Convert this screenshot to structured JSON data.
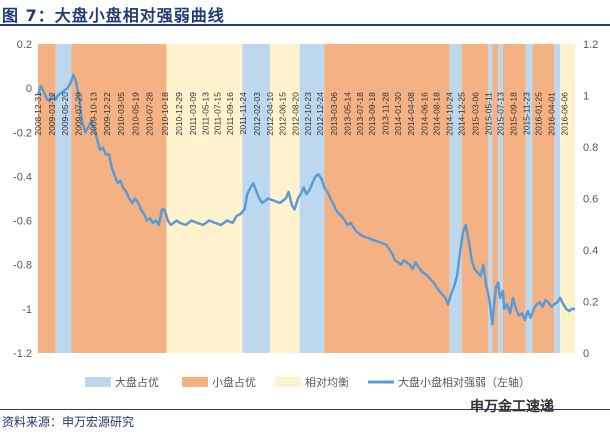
{
  "figure": {
    "title": "图 7：大盘小盘相对强弱曲线",
    "source": "资料来源：申万宏源研究",
    "watermark": "申万金工速递"
  },
  "colors": {
    "large": "#bdd7ee",
    "small": "#f4b183",
    "balance": "#fff2cc",
    "line": "#5b9bd5",
    "title": "#1f3c73",
    "text": "#595959"
  },
  "chart_data": {
    "type": "line",
    "title": "",
    "xlabel": "",
    "ylabel_left": "",
    "ylabel_right": "",
    "ylim_left": [
      -1.2,
      0.2
    ],
    "ylim_right": [
      0,
      1.2
    ],
    "yticks_left": [
      "0.2",
      "0",
      "-0.2",
      "-0.4",
      "-0.6",
      "-0.8",
      "-1",
      "-1.2"
    ],
    "yticks_right": [
      "1.2",
      "1",
      "0.8",
      "0.6",
      "0.4",
      "0.2",
      "0"
    ],
    "x_range": [
      "2008-12-31",
      "2016-07-31"
    ],
    "x_tick_labels": [
      "2008-12-31",
      "2009-03-12",
      "2009-05-20",
      "2009-07-29",
      "2009-10-13",
      "2009-12-22",
      "2010-03-05",
      "2010-05-19",
      "2010-07-28",
      "2010-10-18",
      "2010-12-29",
      "2011-03-09",
      "2011-05-13",
      "2011-07-15",
      "2011-09-16",
      "2011-11-24",
      "2012-02-03",
      "2012-04-10",
      "2012-06-15",
      "2012-08-20",
      "2012-10-23",
      "2012-12-24",
      "2013-03-06",
      "2013-05-14",
      "2013-07-18",
      "2013-09-18",
      "2013-11-28",
      "2014-01-30",
      "2014-04-08",
      "2014-06-16",
      "2014-08-18",
      "2014-10-24",
      "2014-12-25",
      "2015-03-06",
      "2015-05-11",
      "2015-07-13",
      "2015-09-18",
      "2015-11-23",
      "2016-01-25",
      "2016-04-01",
      "2016-06-06"
    ],
    "legend": [
      "大盘占优",
      "小盘占优",
      "相对均衡",
      "大盘小盘相对强弱（左轴）"
    ],
    "legend_position": "bottom",
    "grid": false,
    "regimes": [
      {
        "start": "2008-12-31",
        "end": "2009-04-01",
        "type": "small"
      },
      {
        "start": "2009-04-01",
        "end": "2009-06-20",
        "type": "large"
      },
      {
        "start": "2009-06-20",
        "end": "2010-10-25",
        "type": "small"
      },
      {
        "start": "2010-10-25",
        "end": "2011-11-20",
        "type": "balance"
      },
      {
        "start": "2011-11-20",
        "end": "2012-04-10",
        "type": "large"
      },
      {
        "start": "2012-04-10",
        "end": "2012-09-10",
        "type": "balance"
      },
      {
        "start": "2012-09-10",
        "end": "2013-01-15",
        "type": "large"
      },
      {
        "start": "2013-01-15",
        "end": "2014-10-24",
        "type": "small"
      },
      {
        "start": "2014-10-24",
        "end": "2014-12-25",
        "type": "large"
      },
      {
        "start": "2014-12-25",
        "end": "2015-05-11",
        "type": "small"
      },
      {
        "start": "2015-05-11",
        "end": "2015-06-01",
        "type": "large"
      },
      {
        "start": "2015-06-01",
        "end": "2015-07-01",
        "type": "small"
      },
      {
        "start": "2015-07-01",
        "end": "2015-07-25",
        "type": "large"
      },
      {
        "start": "2015-07-25",
        "end": "2015-11-20",
        "type": "small"
      },
      {
        "start": "2015-11-20",
        "end": "2015-12-25",
        "type": "large"
      },
      {
        "start": "2015-12-25",
        "end": "2016-04-15",
        "type": "small"
      },
      {
        "start": "2016-04-15",
        "end": "2016-05-15",
        "type": "large"
      },
      {
        "start": "2016-05-15",
        "end": "2016-07-31",
        "type": "balance"
      }
    ],
    "series": [
      {
        "name": "大盘小盘相对强弱（左轴）",
        "axis": "left",
        "points": [
          [
            "2008-12-31",
            -0.03
          ],
          [
            "2009-01-15",
            0.01
          ],
          [
            "2009-02-01",
            -0.02
          ],
          [
            "2009-02-15",
            -0.05
          ],
          [
            "2009-03-01",
            -0.06
          ],
          [
            "2009-03-15",
            -0.03
          ],
          [
            "2009-04-01",
            -0.05
          ],
          [
            "2009-04-15",
            -0.03
          ],
          [
            "2009-05-01",
            -0.02
          ],
          [
            "2009-05-15",
            -0.01
          ],
          [
            "2009-06-01",
            0.0
          ],
          [
            "2009-06-15",
            0.02
          ],
          [
            "2009-07-01",
            0.06
          ],
          [
            "2009-07-15",
            0.03
          ],
          [
            "2009-08-01",
            -0.05
          ],
          [
            "2009-08-15",
            -0.15
          ],
          [
            "2009-09-01",
            -0.2
          ],
          [
            "2009-09-15",
            -0.18
          ],
          [
            "2009-10-01",
            -0.15
          ],
          [
            "2009-10-15",
            -0.18
          ],
          [
            "2009-11-01",
            -0.23
          ],
          [
            "2009-11-15",
            -0.28
          ],
          [
            "2009-12-01",
            -0.27
          ],
          [
            "2009-12-15",
            -0.3
          ],
          [
            "2010-01-01",
            -0.3
          ],
          [
            "2010-01-15",
            -0.36
          ],
          [
            "2010-02-01",
            -0.4
          ],
          [
            "2010-02-15",
            -0.43
          ],
          [
            "2010-03-01",
            -0.42
          ],
          [
            "2010-03-15",
            -0.45
          ],
          [
            "2010-04-01",
            -0.47
          ],
          [
            "2010-04-15",
            -0.5
          ],
          [
            "2010-05-01",
            -0.52
          ],
          [
            "2010-05-15",
            -0.5
          ],
          [
            "2010-06-01",
            -0.52
          ],
          [
            "2010-06-15",
            -0.55
          ],
          [
            "2010-07-01",
            -0.57
          ],
          [
            "2010-07-15",
            -0.6
          ],
          [
            "2010-08-01",
            -0.59
          ],
          [
            "2010-08-15",
            -0.61
          ],
          [
            "2010-09-01",
            -0.6
          ],
          [
            "2010-09-15",
            -0.62
          ],
          [
            "2010-10-01",
            -0.55
          ],
          [
            "2010-10-15",
            -0.55
          ],
          [
            "2010-11-01",
            -0.6
          ],
          [
            "2010-11-15",
            -0.62
          ],
          [
            "2010-12-01",
            -0.61
          ],
          [
            "2010-12-15",
            -0.6
          ],
          [
            "2011-01-01",
            -0.61
          ],
          [
            "2011-02-01",
            -0.62
          ],
          [
            "2011-03-01",
            -0.6
          ],
          [
            "2011-04-01",
            -0.61
          ],
          [
            "2011-05-01",
            -0.62
          ],
          [
            "2011-06-01",
            -0.6
          ],
          [
            "2011-07-01",
            -0.61
          ],
          [
            "2011-08-01",
            -0.62
          ],
          [
            "2011-09-01",
            -0.6
          ],
          [
            "2011-10-01",
            -0.61
          ],
          [
            "2011-10-20",
            -0.58
          ],
          [
            "2011-11-10",
            -0.57
          ],
          [
            "2011-12-01",
            -0.55
          ],
          [
            "2011-12-15",
            -0.48
          ],
          [
            "2012-01-01",
            -0.45
          ],
          [
            "2012-01-15",
            -0.43
          ],
          [
            "2012-02-01",
            -0.47
          ],
          [
            "2012-02-15",
            -0.5
          ],
          [
            "2012-03-01",
            -0.52
          ],
          [
            "2012-04-01",
            -0.5
          ],
          [
            "2012-05-01",
            -0.51
          ],
          [
            "2012-06-01",
            -0.52
          ],
          [
            "2012-07-01",
            -0.5
          ],
          [
            "2012-07-15",
            -0.47
          ],
          [
            "2012-08-01",
            -0.53
          ],
          [
            "2012-08-15",
            -0.55
          ],
          [
            "2012-09-01",
            -0.5
          ],
          [
            "2012-09-15",
            -0.48
          ],
          [
            "2012-10-01",
            -0.45
          ],
          [
            "2012-10-15",
            -0.48
          ],
          [
            "2012-11-01",
            -0.46
          ],
          [
            "2012-11-15",
            -0.43
          ],
          [
            "2012-12-01",
            -0.4
          ],
          [
            "2012-12-15",
            -0.39
          ],
          [
            "2013-01-01",
            -0.41
          ],
          [
            "2013-01-15",
            -0.45
          ],
          [
            "2013-02-01",
            -0.47
          ],
          [
            "2013-02-15",
            -0.5
          ],
          [
            "2013-03-01",
            -0.52
          ],
          [
            "2013-03-15",
            -0.55
          ],
          [
            "2013-04-01",
            -0.57
          ],
          [
            "2013-04-15",
            -0.58
          ],
          [
            "2013-05-01",
            -0.6
          ],
          [
            "2013-05-15",
            -0.62
          ],
          [
            "2013-06-01",
            -0.61
          ],
          [
            "2013-06-15",
            -0.63
          ],
          [
            "2013-07-01",
            -0.65
          ],
          [
            "2013-07-15",
            -0.66
          ],
          [
            "2013-08-01",
            -0.67
          ],
          [
            "2013-09-01",
            -0.68
          ],
          [
            "2013-10-01",
            -0.69
          ],
          [
            "2013-11-01",
            -0.7
          ],
          [
            "2013-12-01",
            -0.71
          ],
          [
            "2014-01-01",
            -0.75
          ],
          [
            "2014-01-15",
            -0.78
          ],
          [
            "2014-02-01",
            -0.79
          ],
          [
            "2014-02-15",
            -0.8
          ],
          [
            "2014-03-01",
            -0.78
          ],
          [
            "2014-04-01",
            -0.8
          ],
          [
            "2014-04-15",
            -0.82
          ],
          [
            "2014-05-01",
            -0.79
          ],
          [
            "2014-06-01",
            -0.83
          ],
          [
            "2014-07-01",
            -0.85
          ],
          [
            "2014-08-01",
            -0.88
          ],
          [
            "2014-09-01",
            -0.92
          ],
          [
            "2014-10-01",
            -0.95
          ],
          [
            "2014-10-15",
            -0.98
          ],
          [
            "2014-11-01",
            -0.93
          ],
          [
            "2014-11-15",
            -0.9
          ],
          [
            "2014-12-01",
            -0.85
          ],
          [
            "2014-12-15",
            -0.75
          ],
          [
            "2015-01-01",
            -0.65
          ],
          [
            "2015-01-15",
            -0.62
          ],
          [
            "2015-02-01",
            -0.7
          ],
          [
            "2015-02-15",
            -0.78
          ],
          [
            "2015-03-01",
            -0.82
          ],
          [
            "2015-04-01",
            -0.85
          ],
          [
            "2015-04-15",
            -0.8
          ],
          [
            "2015-05-01",
            -0.9
          ],
          [
            "2015-05-15",
            -0.95
          ],
          [
            "2015-06-01",
            -1.07
          ],
          [
            "2015-06-10",
            -0.98
          ],
          [
            "2015-06-20",
            -0.9
          ],
          [
            "2015-07-01",
            -0.88
          ],
          [
            "2015-07-10",
            -0.95
          ],
          [
            "2015-07-25",
            -0.92
          ],
          [
            "2015-08-01",
            -1.0
          ],
          [
            "2015-08-15",
            -0.98
          ],
          [
            "2015-09-01",
            -1.02
          ],
          [
            "2015-09-15",
            -0.95
          ],
          [
            "2015-10-01",
            -1.0
          ],
          [
            "2015-10-15",
            -1.03
          ],
          [
            "2015-11-01",
            -1.02
          ],
          [
            "2015-11-15",
            -1.05
          ],
          [
            "2015-12-01",
            -1.01
          ],
          [
            "2015-12-15",
            -1.04
          ],
          [
            "2016-01-01",
            -1.0
          ],
          [
            "2016-01-15",
            -0.98
          ],
          [
            "2016-02-01",
            -0.97
          ],
          [
            "2016-02-15",
            -0.99
          ],
          [
            "2016-03-01",
            -0.96
          ],
          [
            "2016-03-15",
            -0.97
          ],
          [
            "2016-04-01",
            -0.99
          ],
          [
            "2016-04-15",
            -0.98
          ],
          [
            "2016-05-01",
            -0.97
          ],
          [
            "2016-05-15",
            -0.95
          ],
          [
            "2016-06-01",
            -0.98
          ],
          [
            "2016-06-15",
            -1.0
          ],
          [
            "2016-07-01",
            -1.01
          ],
          [
            "2016-07-15",
            -1.0
          ],
          [
            "2016-07-31",
            -1.0
          ]
        ]
      }
    ]
  }
}
